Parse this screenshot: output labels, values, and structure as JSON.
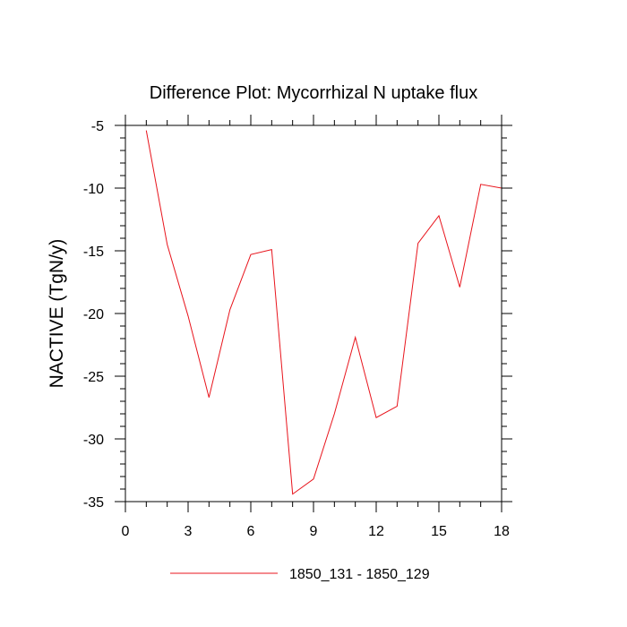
{
  "chart_data": {
    "type": "line",
    "title": "Difference Plot: Mycorrhizal N uptake flux",
    "xlabel": "",
    "ylabel": "NACTIVE  (TgN/y)",
    "xlim": [
      0,
      18
    ],
    "ylim": [
      -35,
      -5
    ],
    "x_ticks": [
      0,
      3,
      6,
      9,
      12,
      15,
      18
    ],
    "x_tick_labels": [
      "0",
      "3",
      "6",
      "9",
      "12",
      "15",
      "18"
    ],
    "y_ticks": [
      -5,
      -10,
      -15,
      -20,
      -25,
      -30,
      -35
    ],
    "y_tick_labels": [
      "-5",
      "-10",
      "-15",
      "-20",
      "-25",
      "-30",
      "-35"
    ],
    "grid": false,
    "legend_position": "bottom",
    "series": [
      {
        "name": "1850_131 - 1850_129",
        "color": "#e8141c",
        "x": [
          1,
          2,
          3,
          4,
          5,
          6,
          7,
          8,
          9,
          10,
          11,
          12,
          13,
          14,
          15,
          16,
          17,
          18
        ],
        "y": [
          -5.4,
          -14.5,
          -20.2,
          -26.7,
          -19.7,
          -15.3,
          -14.9,
          -34.4,
          -33.2,
          -28.0,
          -21.9,
          -28.3,
          -27.4,
          -14.4,
          -12.2,
          -17.9,
          -9.7,
          -10.0
        ]
      }
    ]
  }
}
